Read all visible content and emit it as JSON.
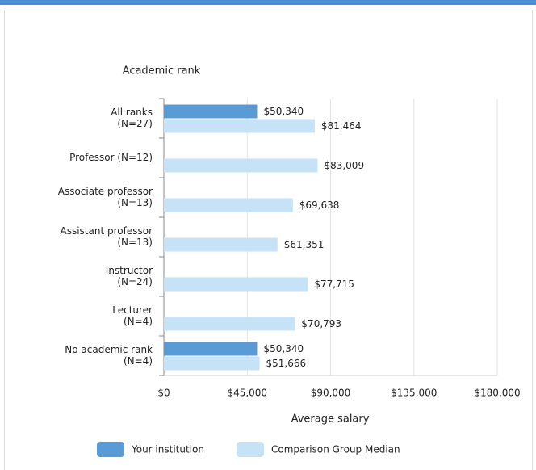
{
  "chart_data": {
    "type": "bar",
    "orientation": "horizontal",
    "y_axis_title": "Academic rank",
    "x_axis_title": "Average salary",
    "categories": [
      [
        "All ranks",
        "(N=27)"
      ],
      [
        "Professor (N=12)"
      ],
      [
        "Associate professor",
        "(N=13)"
      ],
      [
        "Assistant professor",
        "(N=13)"
      ],
      [
        "Instructor",
        "(N=24)"
      ],
      [
        "Lecturer",
        "(N=4)"
      ],
      [
        "No academic rank",
        "(N=4)"
      ]
    ],
    "series": [
      {
        "name": "Your institution",
        "color": "#5b9bd5",
        "values": [
          50340,
          null,
          null,
          null,
          null,
          null,
          50340
        ],
        "value_labels": [
          "$50,340",
          null,
          null,
          null,
          null,
          null,
          "$50,340"
        ]
      },
      {
        "name": "Comparison Group Median",
        "color": "#c6e2f7",
        "values": [
          81464,
          83009,
          69638,
          61351,
          77715,
          70793,
          51666
        ],
        "value_labels": [
          "$81,464",
          "$83,009",
          "$69,638",
          "$61,351",
          "$77,715",
          "$70,793",
          "$51,666"
        ]
      }
    ],
    "xlim": [
      0,
      180000
    ],
    "xticks": [
      {
        "value": 0,
        "label": "$0"
      },
      {
        "value": 45000,
        "label": "$45,000"
      },
      {
        "value": 90000,
        "label": "$90,000"
      },
      {
        "value": 135000,
        "label": "$135,000"
      },
      {
        "value": 180000,
        "label": "$180,000"
      }
    ],
    "grid": true
  }
}
